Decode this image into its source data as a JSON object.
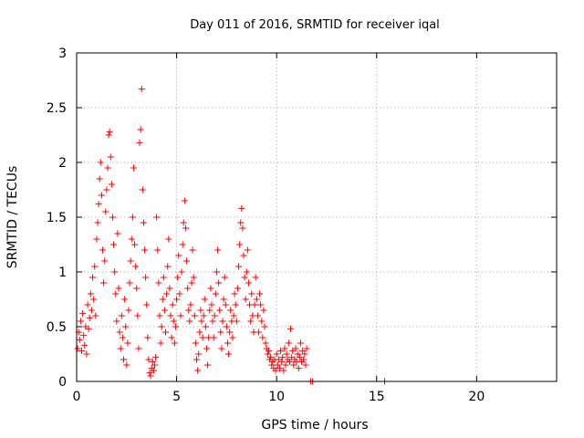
{
  "chart_data": {
    "type": "scatter",
    "title": "Day 011 of 2016, SRMTID for receiver iqal",
    "xlabel": "GPS time / hours",
    "ylabel": "SRMTID / TECUs",
    "xlim": [
      0,
      24
    ],
    "ylim": [
      0,
      3
    ],
    "xticks": [
      0,
      5,
      10,
      15,
      20
    ],
    "xtick_labels": [
      "0",
      "5",
      "10",
      "15",
      "20"
    ],
    "yticks": [
      0,
      0.5,
      1,
      1.5,
      2,
      2.5,
      3
    ],
    "ytick_labels": [
      "0",
      "0.5",
      "1",
      "1.5",
      "2",
      "2.5",
      "3"
    ],
    "grid": true,
    "marker": "+",
    "series": [
      {
        "name": "SRMTID",
        "color": "#ff0000",
        "points": [
          [
            0.05,
            0.3
          ],
          [
            0.1,
            0.45
          ],
          [
            0.15,
            0.38
          ],
          [
            0.2,
            0.55
          ],
          [
            0.25,
            0.28
          ],
          [
            0.3,
            0.62
          ],
          [
            0.35,
            0.42
          ],
          [
            0.4,
            0.33
          ],
          [
            0.45,
            0.5
          ],
          [
            0.5,
            0.25
          ],
          [
            0.55,
            0.7
          ],
          [
            0.6,
            0.48
          ],
          [
            0.65,
            0.58
          ],
          [
            0.7,
            0.8
          ],
          [
            0.75,
            0.65
          ],
          [
            0.8,
            0.95
          ],
          [
            0.85,
            0.75
          ],
          [
            0.9,
            1.05
          ],
          [
            0.95,
            0.6
          ],
          [
            1.0,
            1.3
          ],
          [
            1.05,
            1.45
          ],
          [
            1.1,
            1.62
          ],
          [
            1.15,
            1.85
          ],
          [
            1.2,
            2.0
          ],
          [
            1.25,
            1.7
          ],
          [
            1.3,
            1.2
          ],
          [
            1.35,
            0.9
          ],
          [
            1.4,
            1.1
          ],
          [
            1.45,
            1.55
          ],
          [
            1.5,
            1.75
          ],
          [
            1.55,
            1.95
          ],
          [
            1.6,
            2.25
          ],
          [
            1.65,
            2.28
          ],
          [
            1.7,
            2.05
          ],
          [
            1.75,
            1.8
          ],
          [
            1.8,
            1.5
          ],
          [
            1.85,
            1.25
          ],
          [
            1.9,
            1.0
          ],
          [
            1.95,
            0.8
          ],
          [
            2.0,
            0.55
          ],
          [
            2.05,
            1.35
          ],
          [
            2.1,
            0.85
          ],
          [
            2.15,
            0.45
          ],
          [
            2.2,
            0.3
          ],
          [
            2.25,
            0.6
          ],
          [
            2.3,
            0.4
          ],
          [
            2.35,
            0.2
          ],
          [
            2.4,
            0.75
          ],
          [
            2.45,
            0.5
          ],
          [
            2.5,
            0.15
          ],
          [
            2.55,
            0.35
          ],
          [
            2.6,
            0.65
          ],
          [
            2.65,
            0.9
          ],
          [
            2.7,
            1.1
          ],
          [
            2.75,
            1.3
          ],
          [
            2.8,
            1.5
          ],
          [
            2.85,
            1.95
          ],
          [
            2.9,
            1.25
          ],
          [
            2.95,
            1.05
          ],
          [
            3.0,
            0.85
          ],
          [
            3.05,
            0.6
          ],
          [
            3.1,
            0.3
          ],
          [
            3.15,
            2.18
          ],
          [
            3.2,
            2.3
          ],
          [
            3.25,
            2.67
          ],
          [
            3.3,
            1.75
          ],
          [
            3.35,
            1.45
          ],
          [
            3.4,
            1.2
          ],
          [
            3.45,
            0.95
          ],
          [
            3.5,
            0.7
          ],
          [
            3.55,
            0.4
          ],
          [
            3.6,
            0.2
          ],
          [
            3.65,
            0.08
          ],
          [
            3.7,
            0.05
          ],
          [
            3.75,
            0.12
          ],
          [
            3.8,
            0.18
          ],
          [
            3.85,
            0.1
          ],
          [
            3.9,
            0.15
          ],
          [
            3.95,
            0.22
          ],
          [
            4.0,
            1.5
          ],
          [
            4.05,
            1.2
          ],
          [
            4.1,
            0.9
          ],
          [
            4.15,
            0.6
          ],
          [
            4.2,
            0.35
          ],
          [
            4.25,
            0.5
          ],
          [
            4.3,
            0.75
          ],
          [
            4.35,
            0.95
          ],
          [
            4.4,
            0.65
          ],
          [
            4.45,
            0.45
          ],
          [
            4.5,
            0.8
          ],
          [
            4.55,
            1.05
          ],
          [
            4.6,
            1.3
          ],
          [
            4.65,
            0.85
          ],
          [
            4.7,
            0.6
          ],
          [
            4.75,
            0.4
          ],
          [
            4.8,
            0.7
          ],
          [
            4.85,
            0.55
          ],
          [
            4.9,
            0.35
          ],
          [
            4.95,
            0.5
          ],
          [
            5.0,
            0.75
          ],
          [
            5.05,
            0.95
          ],
          [
            5.1,
            1.15
          ],
          [
            5.15,
            0.8
          ],
          [
            5.2,
            0.6
          ],
          [
            5.25,
            1.0
          ],
          [
            5.3,
            1.25
          ],
          [
            5.35,
            1.45
          ],
          [
            5.4,
            1.65
          ],
          [
            5.45,
            1.4
          ],
          [
            5.5,
            1.1
          ],
          [
            5.55,
            0.85
          ],
          [
            5.6,
            0.65
          ],
          [
            5.65,
            0.55
          ],
          [
            5.7,
            0.7
          ],
          [
            5.75,
            0.9
          ],
          [
            5.8,
            1.2
          ],
          [
            5.85,
            0.95
          ],
          [
            5.9,
            0.6
          ],
          [
            5.95,
            0.35
          ],
          [
            6.0,
            0.2
          ],
          [
            6.05,
            0.1
          ],
          [
            6.1,
            0.25
          ],
          [
            6.15,
            0.45
          ],
          [
            6.2,
            0.65
          ],
          [
            6.25,
            0.55
          ],
          [
            6.3,
            0.4
          ],
          [
            6.35,
            0.6
          ],
          [
            6.4,
            0.75
          ],
          [
            6.45,
            0.5
          ],
          [
            6.5,
            0.3
          ],
          [
            6.55,
            0.15
          ],
          [
            6.6,
            0.4
          ],
          [
            6.65,
            0.65
          ],
          [
            6.7,
            0.85
          ],
          [
            6.75,
            0.7
          ],
          [
            6.8,
            0.55
          ],
          [
            6.85,
            0.4
          ],
          [
            6.9,
            0.6
          ],
          [
            6.95,
            0.8
          ],
          [
            7.0,
            1.0
          ],
          [
            7.05,
            1.2
          ],
          [
            7.1,
            0.9
          ],
          [
            7.15,
            0.65
          ],
          [
            7.2,
            0.45
          ],
          [
            7.25,
            0.3
          ],
          [
            7.3,
            0.55
          ],
          [
            7.35,
            0.75
          ],
          [
            7.4,
            0.95
          ],
          [
            7.45,
            0.7
          ],
          [
            7.5,
            0.5
          ],
          [
            7.55,
            0.35
          ],
          [
            7.6,
            0.25
          ],
          [
            7.65,
            0.45
          ],
          [
            7.7,
            0.65
          ],
          [
            7.75,
            0.55
          ],
          [
            7.8,
            0.4
          ],
          [
            7.85,
            0.6
          ],
          [
            7.9,
            0.8
          ],
          [
            7.95,
            0.7
          ],
          [
            8.0,
            0.55
          ],
          [
            8.05,
            0.85
          ],
          [
            8.1,
            1.05
          ],
          [
            8.15,
            1.25
          ],
          [
            8.2,
            1.45
          ],
          [
            8.25,
            1.58
          ],
          [
            8.3,
            1.4
          ],
          [
            8.35,
            1.15
          ],
          [
            8.4,
            0.95
          ],
          [
            8.45,
            0.75
          ],
          [
            8.5,
            1.0
          ],
          [
            8.55,
            1.2
          ],
          [
            8.6,
            0.9
          ],
          [
            8.65,
            0.7
          ],
          [
            8.7,
            0.55
          ],
          [
            8.75,
            0.8
          ],
          [
            8.8,
            0.6
          ],
          [
            8.85,
            0.45
          ],
          [
            8.9,
            0.7
          ],
          [
            8.95,
            0.95
          ],
          [
            9.0,
            0.75
          ],
          [
            9.05,
            0.6
          ],
          [
            9.1,
            0.45
          ],
          [
            9.15,
            0.8
          ],
          [
            9.2,
            0.7
          ],
          [
            9.25,
            0.55
          ],
          [
            9.3,
            0.4
          ],
          [
            9.35,
            0.65
          ],
          [
            9.4,
            0.5
          ],
          [
            9.45,
            0.35
          ],
          [
            9.5,
            0.3
          ],
          [
            9.55,
            0.25
          ],
          [
            9.6,
            0.28
          ],
          [
            9.65,
            0.2
          ],
          [
            9.7,
            0.22
          ],
          [
            9.75,
            0.15
          ],
          [
            9.8,
            0.18
          ],
          [
            9.85,
            0.12
          ],
          [
            9.9,
            0.2
          ],
          [
            9.95,
            0.1
          ],
          [
            10.0,
            0.25
          ],
          [
            10.05,
            0.15
          ],
          [
            10.1,
            0.2
          ],
          [
            10.15,
            0.12
          ],
          [
            10.2,
            0.28
          ],
          [
            10.25,
            0.18
          ],
          [
            10.3,
            0.22
          ],
          [
            10.35,
            0.1
          ],
          [
            10.4,
            0.3
          ],
          [
            10.45,
            0.15
          ],
          [
            10.5,
            0.25
          ],
          [
            10.55,
            0.2
          ],
          [
            10.6,
            0.35
          ],
          [
            10.65,
            0.18
          ],
          [
            10.7,
            0.48
          ],
          [
            10.75,
            0.22
          ],
          [
            10.8,
            0.28
          ],
          [
            10.85,
            0.15
          ],
          [
            10.9,
            0.2
          ],
          [
            10.95,
            0.3
          ],
          [
            11.0,
            0.18
          ],
          [
            11.05,
            0.25
          ],
          [
            11.1,
            0.12
          ],
          [
            11.15,
            0.22
          ],
          [
            11.2,
            0.35
          ],
          [
            11.25,
            0.18
          ],
          [
            11.3,
            0.28
          ],
          [
            11.35,
            0.2
          ],
          [
            11.4,
            0.25
          ],
          [
            11.45,
            0.15
          ],
          [
            11.5,
            0.3
          ],
          [
            11.7,
            0.0
          ],
          [
            11.8,
            0.0
          ],
          [
            15.4,
            0.0
          ]
        ]
      }
    ]
  }
}
